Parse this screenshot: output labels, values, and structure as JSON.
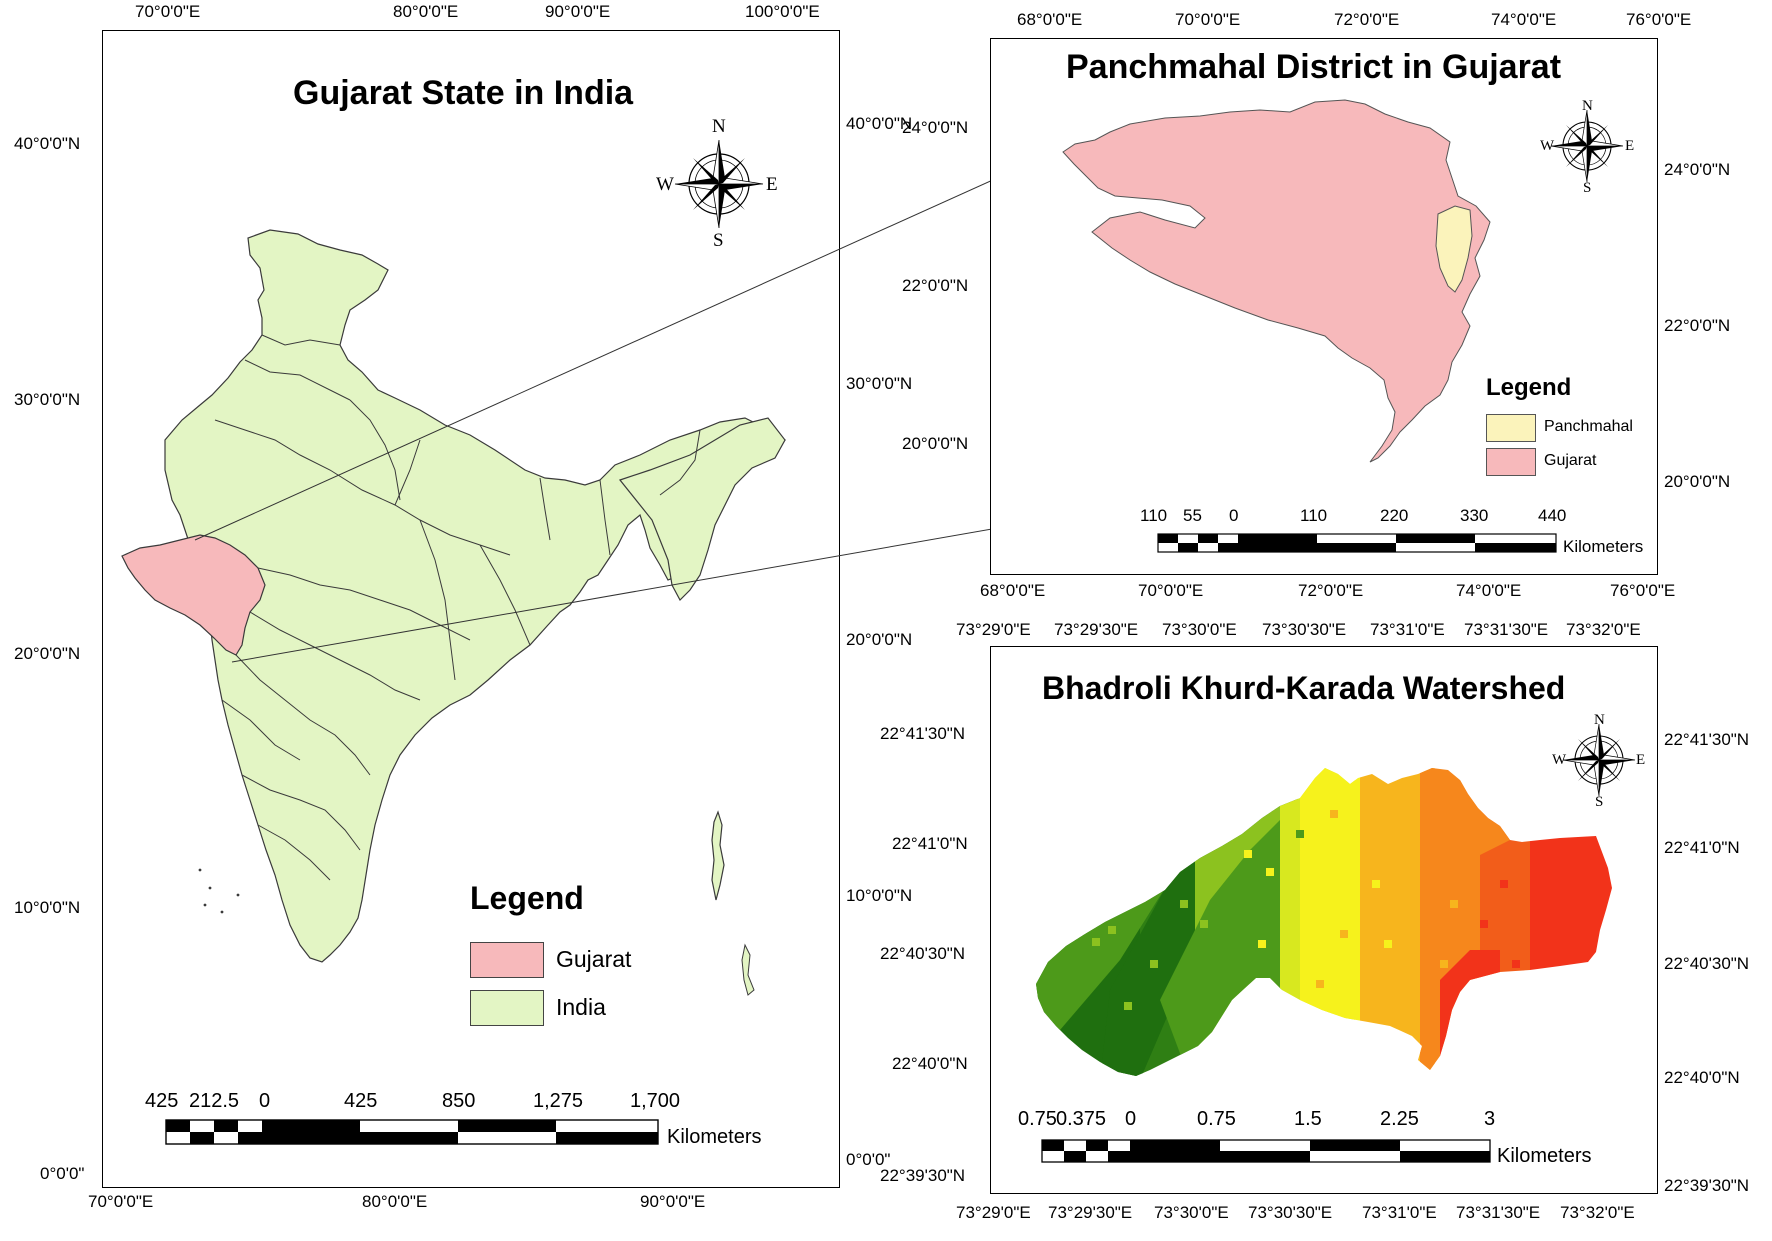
{
  "panel_india": {
    "title": "Gujarat State in India",
    "top_ticks": [
      "70°0'0\"E",
      "80°0'0\"E",
      "90°0'0\"E",
      "100°0'0\"E"
    ],
    "bottom_ticks": [
      "70°0'0\"E",
      "80°0'0\"E",
      "90°0'0\"E"
    ],
    "left_ticks": [
      "40°0'0\"N",
      "30°0'0\"N",
      "20°0'0\"N",
      "10°0'0\"N",
      "0°0'0\""
    ],
    "right_ticks": [
      "40°0'0\"N",
      "30°0'0\"N",
      "20°0'0\"N",
      "10°0'0\"N",
      "0°0'0\""
    ],
    "legend": {
      "title": "Legend",
      "items": [
        {
          "label": "Gujarat",
          "color": "#f7b9bb"
        },
        {
          "label": "India",
          "color": "#e3f5c4"
        }
      ]
    },
    "scale": {
      "labels": [
        "425",
        "212.5",
        "0",
        "425",
        "850",
        "1,275",
        "1,700"
      ],
      "unit": "Kilometers"
    },
    "compass": {
      "n": "N",
      "s": "S",
      "e": "E",
      "w": "W",
      "icon": "compass-rose-icon"
    }
  },
  "panel_district": {
    "title": "Panchmahal District in Gujarat",
    "top_ticks": [
      "68°0'0\"E",
      "70°0'0\"E",
      "72°0'0\"E",
      "74°0'0\"E",
      "76°0'0\"E"
    ],
    "bottom_ticks": [
      "68°0'0\"E",
      "70°0'0\"E",
      "72°0'0\"E",
      "74°0'0\"E",
      "76°0'0\"E"
    ],
    "left_ticks": [
      "24°0'0\"N",
      "22°0'0\"N",
      "20°0'0\"N"
    ],
    "right_ticks": [
      "24°0'0\"N",
      "22°0'0\"N",
      "20°0'0\"N"
    ],
    "legend": {
      "title": "Legend",
      "items": [
        {
          "label": "Panchmahal",
          "color": "#fbf3bb"
        },
        {
          "label": "Gujarat",
          "color": "#f7b9bb"
        }
      ]
    },
    "scale": {
      "labels": [
        "110",
        "55",
        "0",
        "110",
        "220",
        "330",
        "440"
      ],
      "unit": "Kilometers"
    },
    "compass": {
      "n": "N",
      "s": "S",
      "e": "E",
      "w": "W",
      "icon": "compass-rose-icon"
    }
  },
  "panel_watershed": {
    "title": "Bhadroli Khurd-Karada Watershed",
    "top_ticks": [
      "73°29'0\"E",
      "73°29'30\"E",
      "73°30'0\"E",
      "73°30'30\"E",
      "73°31'0\"E",
      "73°31'30\"E",
      "73°32'0\"E"
    ],
    "bottom_ticks": [
      "73°29'0\"E",
      "73°29'30\"E",
      "73°30'0\"E",
      "73°30'30\"E",
      "73°31'0\"E",
      "73°31'30\"E",
      "73°32'0\"E"
    ],
    "left_ticks": [
      "22°41'30\"N",
      "22°41'0\"N",
      "22°40'30\"N",
      "22°40'0\"N",
      "22°39'30\"N"
    ],
    "right_ticks": [
      "22°41'30\"N",
      "22°41'0\"N",
      "22°40'30\"N",
      "22°40'0\"N",
      "22°39'30\"N"
    ],
    "scale": {
      "labels": [
        "0.75",
        "0.375",
        "0",
        "0.75",
        "1.5",
        "2.25",
        "3"
      ],
      "unit": "Kilometers"
    },
    "compass": {
      "n": "N",
      "s": "S",
      "e": "E",
      "w": "W",
      "icon": "compass-rose-icon"
    },
    "colors": [
      "#1f6f0f",
      "#4d9a1a",
      "#8cc21f",
      "#f6f21c",
      "#f7b51d",
      "#f6871c",
      "#f2331a"
    ]
  }
}
